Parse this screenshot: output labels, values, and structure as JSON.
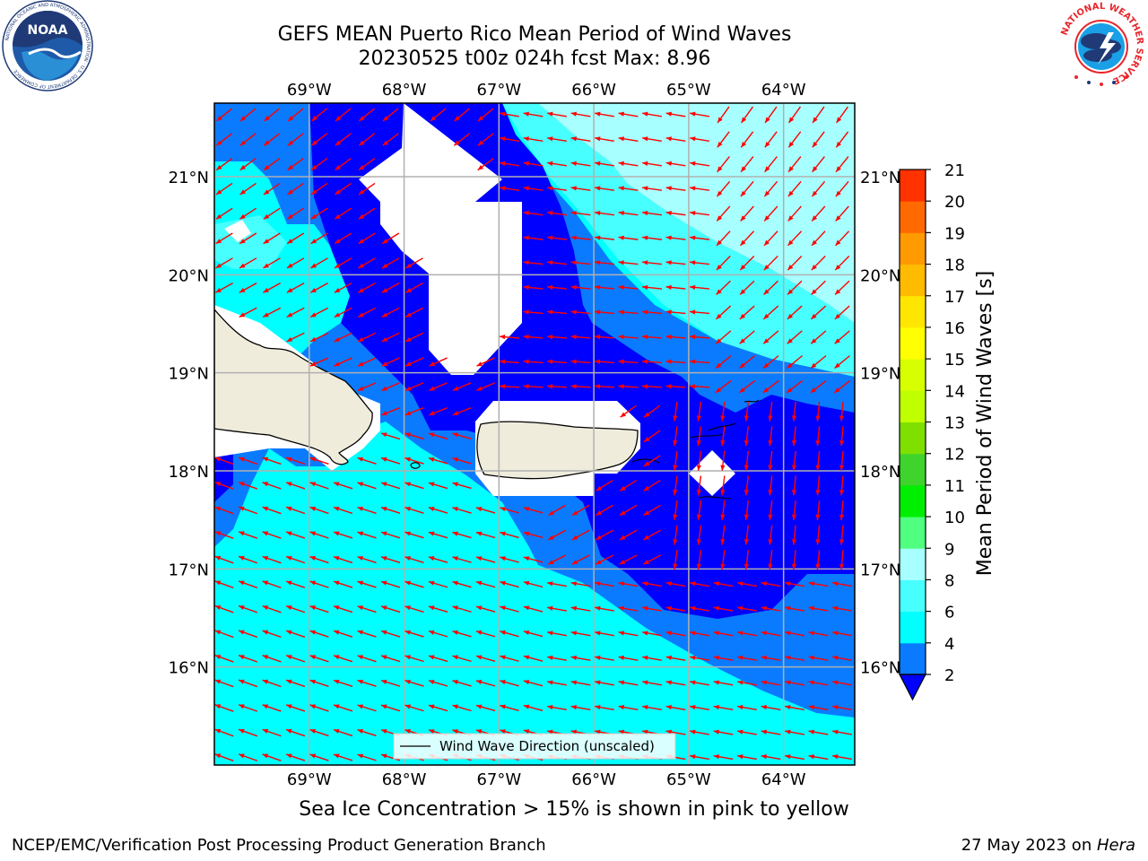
{
  "header": {
    "title_line1": "GEFS MEAN Puerto Rico Mean Period of Wind Waves",
    "title_line2": "20230525 t00z 024h fcst   Max: 8.96"
  },
  "map": {
    "lon_labels": [
      "69°W",
      "68°W",
      "67°W",
      "66°W",
      "65°W",
      "64°W"
    ],
    "lon_values": [
      -69,
      -68,
      -67,
      -66,
      -65,
      -64
    ],
    "lat_labels": [
      "21°N",
      "20°N",
      "19°N",
      "18°N",
      "17°N",
      "16°N"
    ],
    "lat_values": [
      21,
      20,
      19,
      18,
      17,
      16
    ],
    "extent": {
      "lon_min": -70,
      "lon_max": -63.25,
      "lat_min": 15,
      "lat_max": 21.75
    },
    "legend_label": "Wind Wave Direction (unscaled)",
    "arrow_color": "#ff0000",
    "land_color": "#efecdc"
  },
  "colorbar": {
    "label": "Mean Period of Wind Waves [s]",
    "ticks": [
      "2",
      "4",
      "6",
      "8",
      "9",
      "10",
      "11",
      "12",
      "13",
      "14",
      "15",
      "16",
      "17",
      "18",
      "19",
      "20",
      "21"
    ],
    "colors": [
      "#0a7bff",
      "#00ffff",
      "#48ffff",
      "#a8ffff",
      "#50ff80",
      "#00ee00",
      "#3fd42c",
      "#7fe000",
      "#bfff00",
      "#d8ff00",
      "#ffff00",
      "#ffe600",
      "#ffbb00",
      "#ff9a00",
      "#ff6a00",
      "#ff3200"
    ],
    "under_color": "#0000ff"
  },
  "footer": {
    "subtitle": "Sea Ice Concentration > 15% is shown in pink to yellow",
    "credit": "NCEP/EMC/Verification Post Processing Product Generation Branch",
    "date_prefix": "27 May 2023 on ",
    "date_host": "Hera"
  },
  "logos": {
    "noaa_text": "NOAA",
    "noaa_ring_text": "NATIONAL OCEANIC AND ATMOSPHERIC ADMINISTRATION · U.S. DEPARTMENT OF COMMERCE",
    "nws_ring_text": "NATIONAL WEATHER SERVICE"
  }
}
